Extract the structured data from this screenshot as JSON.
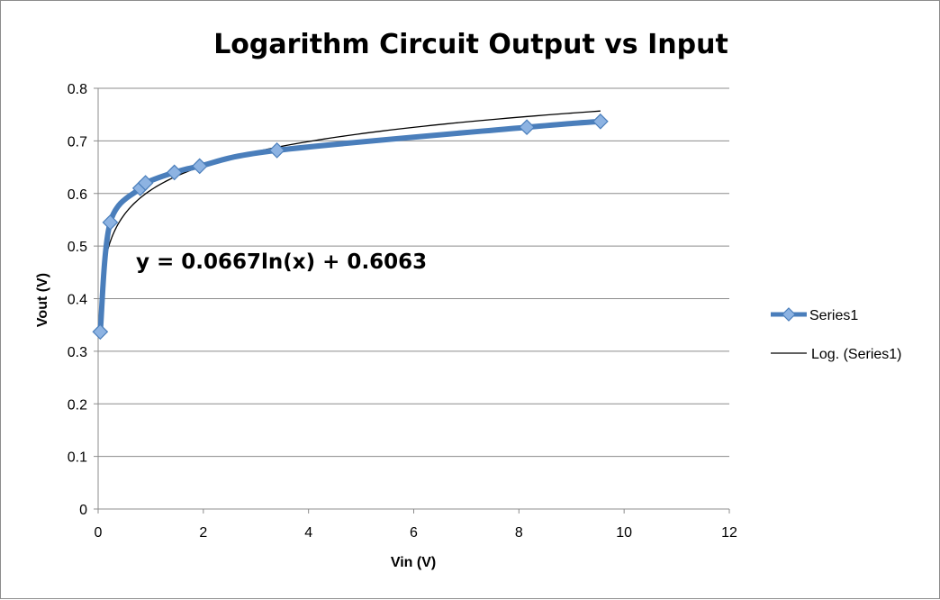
{
  "chart_data": {
    "type": "scatter",
    "title": "Logarithm Circuit Output vs Input",
    "xlabel": "Vin (V)",
    "ylabel": "Vout (V)",
    "xlim": [
      0,
      12
    ],
    "ylim": [
      0,
      0.8
    ],
    "x_ticks": [
      "0",
      "2",
      "4",
      "6",
      "8",
      "10",
      "12"
    ],
    "y_ticks": [
      "0",
      "0.1",
      "0.2",
      "0.3",
      "0.4",
      "0.5",
      "0.6",
      "0.7",
      "0.8"
    ],
    "grid": "horizontal",
    "legend_position": "right",
    "series": [
      {
        "name": "Series1",
        "color": "#4a7ebb",
        "marker": "diamond",
        "smooth": true,
        "x": [
          0.04,
          0.23,
          0.8,
          0.9,
          1.45,
          1.93,
          3.4,
          8.15,
          9.55
        ],
        "y": [
          0.337,
          0.545,
          0.61,
          0.62,
          0.64,
          0.652,
          0.682,
          0.726,
          0.737
        ]
      }
    ],
    "trendline": {
      "name": "Log. (Series1)",
      "type": "logarithmic",
      "color": "#000000",
      "equation": "y = 0.0667ln(x) + 0.6063",
      "coefficient": 0.0667,
      "intercept": 0.6063,
      "x_range": [
        0.04,
        9.55
      ]
    }
  }
}
